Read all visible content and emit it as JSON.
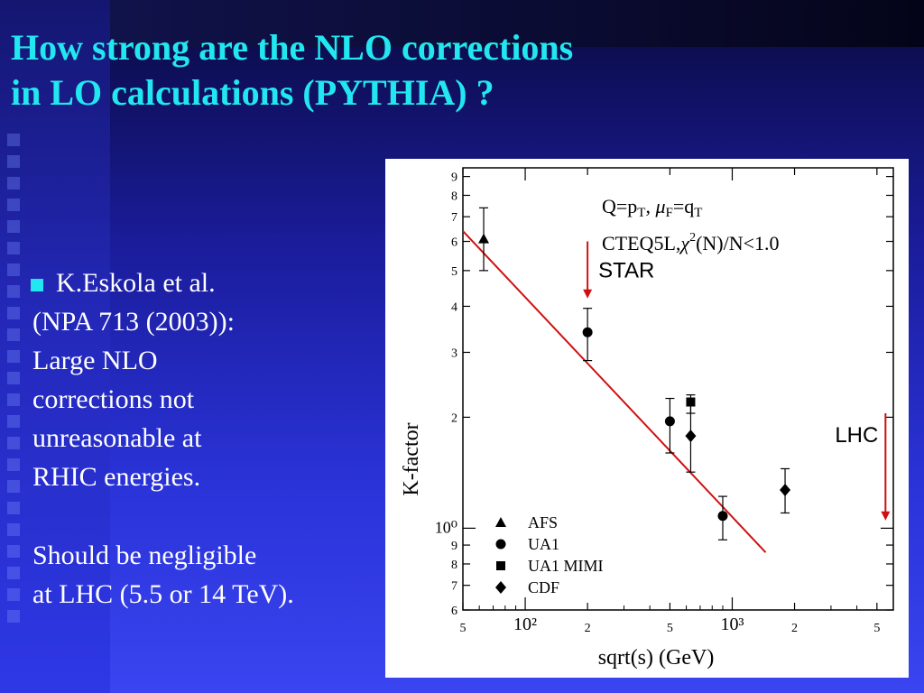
{
  "slide": {
    "title_line1": "How strong are the NLO corrections",
    "title_line2": "in LO calculations (PYTHIA) ?",
    "bullet": {
      "lead": "K.Eskola et al.",
      "lines": [
        "(NPA 713 (2003)):",
        "Large NLO",
        "corrections not",
        "unreasonable at",
        "RHIC energies."
      ]
    },
    "conclusion": [
      "Should be negligible",
      "at LHC (5.5 or 14 TeV)."
    ]
  },
  "colors": {
    "title": "#22e6f0",
    "text": "#ffffff",
    "accent_line": "#d01010",
    "background": "#2a33d8"
  },
  "chart_data": {
    "type": "scatter",
    "xlabel": "sqrt(s) (GeV)",
    "ylabel": "K-factor",
    "x_scale": "log",
    "y_scale": "log",
    "xlim": [
      50,
      6000
    ],
    "ylim": [
      0.6,
      9.5
    ],
    "x_ticks": [
      "5",
      "10²",
      "2",
      "5",
      "10³",
      "2",
      "5"
    ],
    "y_ticks": [
      "6",
      "7",
      "8",
      "9",
      "10⁰",
      "2",
      "3",
      "4",
      "5",
      "6",
      "7",
      "8",
      "9"
    ],
    "annotation_line1": "Q=p_T, μ_F=q_T",
    "annotation_line2": "CTEQ5L, χ²(N)/N<1.0",
    "series": [
      {
        "name": "AFS",
        "marker": "triangle",
        "points": [
          {
            "x": 63,
            "y": 6.1,
            "lo": 5.0,
            "hi": 7.4
          }
        ]
      },
      {
        "name": "UA1",
        "marker": "circle",
        "points": [
          {
            "x": 200,
            "y": 3.4,
            "lo": 2.85,
            "hi": 3.95
          },
          {
            "x": 500,
            "y": 1.95,
            "lo": 1.6,
            "hi": 2.25
          },
          {
            "x": 900,
            "y": 1.08,
            "lo": 0.93,
            "hi": 1.22
          }
        ]
      },
      {
        "name": "UA1 MIMI",
        "marker": "square",
        "points": [
          {
            "x": 630,
            "y": 2.2,
            "lo": 2.05,
            "hi": 2.3
          }
        ]
      },
      {
        "name": "CDF",
        "marker": "diamond",
        "points": [
          {
            "x": 630,
            "y": 1.78,
            "lo": 1.42,
            "hi": 2.15
          },
          {
            "x": 1800,
            "y": 1.27,
            "lo": 1.1,
            "hi": 1.45
          }
        ]
      }
    ],
    "fit_line": {
      "x": [
        50,
        1450
      ],
      "y": [
        6.4,
        0.86
      ]
    },
    "markers": [
      {
        "label": "STAR",
        "x": 200,
        "y_from": 6.0,
        "y_to": 4.2
      },
      {
        "label": "LHC",
        "x": 5500,
        "y_from": 2.05,
        "y_to": 1.05
      }
    ]
  }
}
